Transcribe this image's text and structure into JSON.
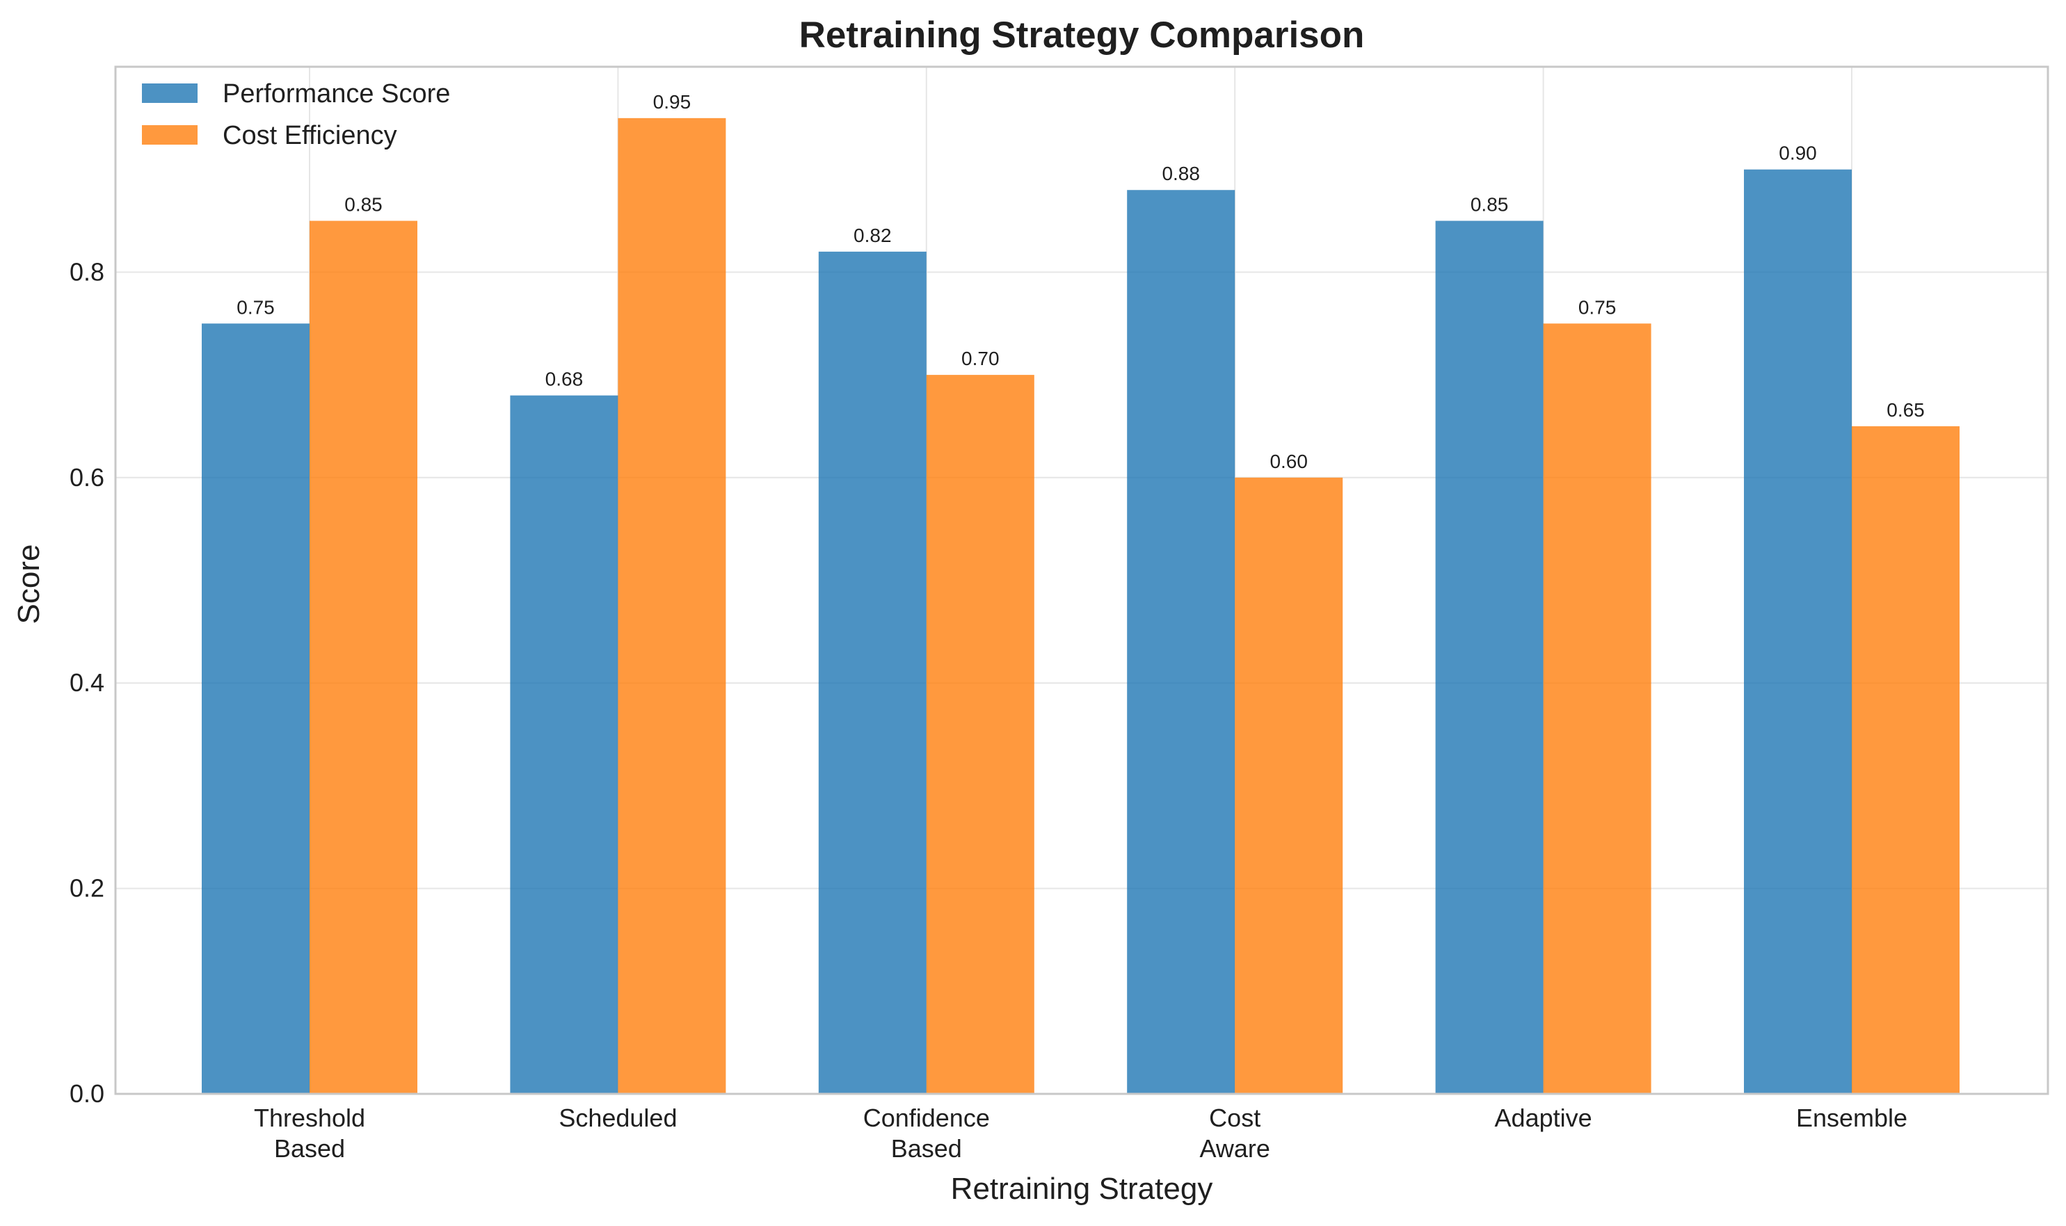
{
  "chart_data": {
    "type": "bar",
    "title": "Retraining Strategy Comparison",
    "xlabel": "Retraining Strategy",
    "ylabel": "Score",
    "categories": [
      [
        "Threshold",
        "Based"
      ],
      [
        "Scheduled"
      ],
      [
        "Confidence",
        "Based"
      ],
      [
        "Cost",
        "Aware"
      ],
      [
        "Adaptive"
      ],
      [
        "Ensemble"
      ]
    ],
    "series": [
      {
        "name": "Performance Score",
        "color": "#1f77b4",
        "values": [
          0.75,
          0.68,
          0.82,
          0.88,
          0.85,
          0.9
        ]
      },
      {
        "name": "Cost Efficiency",
        "color": "#ff7f0e",
        "values": [
          0.85,
          0.95,
          0.7,
          0.6,
          0.75,
          0.65
        ]
      }
    ],
    "ylim": [
      0,
      1.0
    ],
    "yticks": [
      "0.0",
      "0.2",
      "0.4",
      "0.6",
      "0.8"
    ],
    "grid": true,
    "legend_position": "top-left",
    "bar_opacity": 0.8
  }
}
